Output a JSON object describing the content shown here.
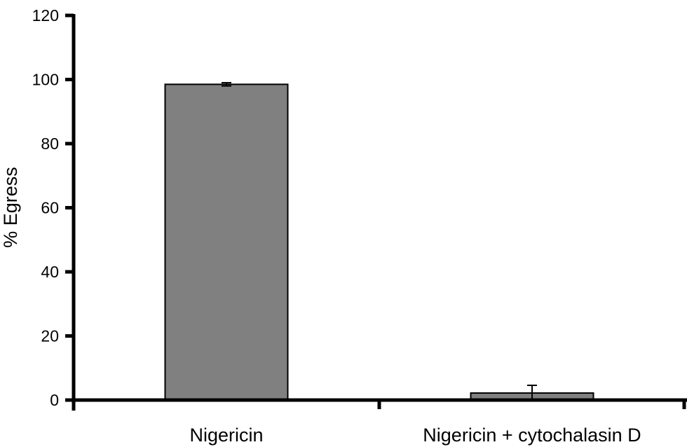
{
  "chart_data": {
    "type": "bar",
    "title": "",
    "xlabel": "",
    "ylabel": "% Egress",
    "ylim": [
      0,
      120
    ],
    "yticks": [
      0,
      20,
      40,
      60,
      80,
      100,
      120
    ],
    "categories": [
      "Nigericin",
      "Nigericin + cytochalasin D"
    ],
    "values": [
      98.5,
      2.2
    ],
    "errors": [
      0.5,
      2.4
    ],
    "bar_color": "#808080",
    "grid": false,
    "legend": null
  }
}
